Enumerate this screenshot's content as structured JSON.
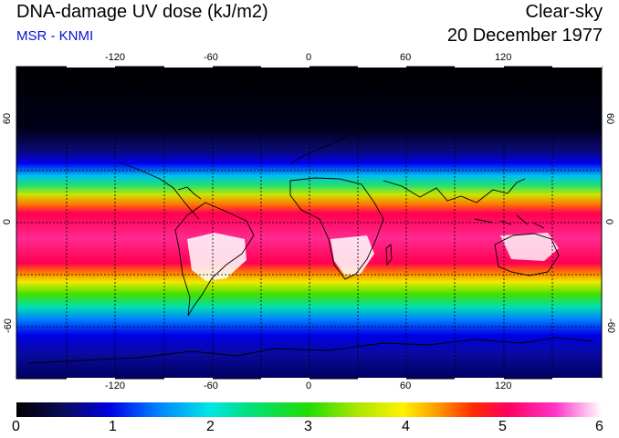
{
  "header": {
    "title": "DNA-damage UV dose (kJ/m2)",
    "subtitle": "MSR - KNMI",
    "condition": "Clear-sky",
    "date": "20 December 1977"
  },
  "map": {
    "longitude_ticks": [
      "-120",
      "-60",
      "0",
      "60",
      "120"
    ],
    "latitude_ticks": [
      "60",
      "0",
      "-60"
    ],
    "longitude_values": [
      -120,
      -60,
      0,
      60,
      120
    ],
    "latitude_values": [
      60,
      0,
      -60
    ],
    "lon_range": [
      -180,
      180
    ],
    "lat_range": [
      -90,
      90
    ]
  },
  "colorbar": {
    "labels": [
      "0",
      "1",
      "2",
      "3",
      "4",
      "5",
      "6"
    ],
    "range": [
      0,
      6
    ],
    "colors": [
      "#000000",
      "#0a0a5a",
      "#0000e6",
      "#0080ff",
      "#00e6e6",
      "#00e07a",
      "#22dd00",
      "#a8e600",
      "#fff200",
      "#ff9a00",
      "#ff2a00",
      "#ff0060",
      "#ff33c8",
      "#ffffff"
    ]
  }
}
